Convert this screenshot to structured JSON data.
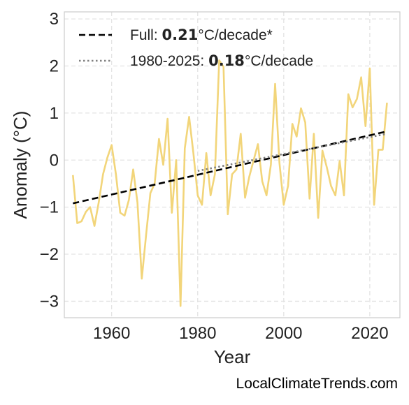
{
  "chart_data": {
    "type": "line",
    "xlabel": "Year",
    "ylabel": "Anomaly (°C)",
    "xlim": [
      1949,
      2027
    ],
    "ylim": [
      -3.35,
      3.15
    ],
    "xticks": [
      1960,
      1980,
      2000,
      2020
    ],
    "yticks": [
      -3,
      -2,
      -1,
      0,
      1,
      2,
      3
    ],
    "ytick_labels": [
      "−3",
      "−2",
      "−1",
      "0",
      "1",
      "2",
      "3"
    ],
    "grid": true,
    "legend_position": "top-left",
    "series": [
      {
        "color": "#f2d57a",
        "x": [
          1951,
          1952,
          1953,
          1954,
          1955,
          1956,
          1957,
          1958,
          1959,
          1960,
          1961,
          1962,
          1963,
          1964,
          1965,
          1966,
          1967,
          1968,
          1969,
          1970,
          1971,
          1972,
          1973,
          1974,
          1975,
          1976,
          1977,
          1978,
          1979,
          1980,
          1981,
          1982,
          1983,
          1984,
          1985,
          1986,
          1987,
          1988,
          1989,
          1990,
          1991,
          1992,
          1993,
          1994,
          1995,
          1996,
          1997,
          1998,
          1999,
          2000,
          2001,
          2002,
          2003,
          2004,
          2005,
          2006,
          2007,
          2008,
          2009,
          2010,
          2011,
          2012,
          2013,
          2014,
          2015,
          2016,
          2017,
          2018,
          2019,
          2020,
          2021,
          2022,
          2023,
          2024
        ],
        "y": [
          -0.32,
          -1.34,
          -1.3,
          -1.1,
          -1.0,
          -1.4,
          -0.9,
          -0.3,
          0.05,
          0.32,
          -0.3,
          -1.12,
          -1.18,
          -0.85,
          -0.2,
          -0.9,
          -2.52,
          -1.6,
          -0.7,
          -0.5,
          0.45,
          -0.1,
          0.88,
          -1.12,
          0.0,
          -3.1,
          0.25,
          0.92,
          0.15,
          -0.75,
          -0.95,
          0.15,
          -0.75,
          -0.3,
          2.12,
          1.98,
          -1.15,
          -0.3,
          -0.2,
          0.56,
          -0.8,
          -0.35,
          0.0,
          0.34,
          -0.45,
          -0.75,
          -0.1,
          1.62,
          -0.06,
          -0.95,
          -0.55,
          0.77,
          0.5,
          1.1,
          0.8,
          -0.82,
          0.56,
          -1.23,
          0.2,
          -0.15,
          -0.55,
          -0.75,
          -0.02,
          -0.75,
          1.4,
          1.12,
          1.3,
          1.76,
          0.72,
          1.95,
          -0.95,
          0.22,
          0.22,
          1.22
        ]
      }
    ],
    "trend_lines": [
      {
        "color": "#000000",
        "style": "dashed",
        "x": [
          1951,
          2024
        ],
        "y": [
          -0.92,
          0.61
        ]
      },
      {
        "color": "#808080",
        "style": "dotted",
        "x": [
          1980,
          2024
        ],
        "y": [
          -0.23,
          0.56
        ]
      }
    ],
    "legend": [
      {
        "prefix": "Full: ",
        "value": "0.21",
        "suffix": "°C/decade*",
        "line_color": "#000000",
        "line_style": "dashed"
      },
      {
        "prefix": "1980-2025: ",
        "value": "0.18",
        "suffix": "°C/decade",
        "line_color": "#808080",
        "line_style": "dotted"
      }
    ]
  },
  "credit": "LocalClimateTrends.com"
}
